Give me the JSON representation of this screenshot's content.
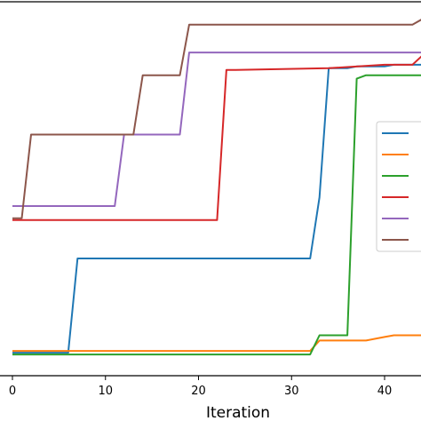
{
  "chart_data": {
    "type": "line",
    "xlabel": "Iteration",
    "xlim": [
      -1,
      44
    ],
    "ylim": [
      0,
      1
    ],
    "x_ticks": [
      0,
      10,
      20,
      30,
      40
    ],
    "legend_position": "center-right",
    "series": [
      {
        "color": "#1f77b4",
        "x": [
          0,
          6,
          7,
          31,
          32,
          33,
          34,
          35,
          36,
          37,
          38,
          39,
          40,
          41,
          42,
          43,
          44
        ],
        "y": [
          0.015,
          0.015,
          0.285,
          0.285,
          0.285,
          0.46,
          0.83,
          0.83,
          0.83,
          0.835,
          0.835,
          0.835,
          0.835,
          0.84,
          0.84,
          0.84,
          0.84
        ]
      },
      {
        "color": "#ff7f0e",
        "x": [
          0,
          31,
          32,
          33,
          38,
          39,
          40,
          41,
          42,
          44
        ],
        "y": [
          0.02,
          0.02,
          0.02,
          0.05,
          0.05,
          0.055,
          0.06,
          0.065,
          0.065,
          0.065
        ]
      },
      {
        "color": "#2ca02c",
        "x": [
          0,
          31,
          32,
          33,
          36,
          37,
          38,
          44
        ],
        "y": [
          0.01,
          0.01,
          0.01,
          0.065,
          0.065,
          0.8,
          0.81,
          0.81
        ]
      },
      {
        "color": "#d62728",
        "x": [
          0,
          22,
          23,
          24,
          34,
          40,
          41,
          42,
          43,
          44
        ],
        "y": [
          0.395,
          0.395,
          0.825,
          0.825,
          0.83,
          0.84,
          0.84,
          0.84,
          0.84,
          0.865
        ]
      },
      {
        "color": "#9467bd",
        "x": [
          0,
          11,
          12,
          13,
          18,
          19,
          43,
          44
        ],
        "y": [
          0.435,
          0.435,
          0.64,
          0.64,
          0.64,
          0.875,
          0.875,
          0.875
        ]
      },
      {
        "color": "#8c564b",
        "x": [
          0,
          1,
          2,
          13,
          14,
          18,
          19,
          20,
          25,
          40,
          41,
          42,
          43,
          44
        ],
        "y": [
          0.4,
          0.4,
          0.64,
          0.64,
          0.81,
          0.81,
          0.955,
          0.955,
          0.955,
          0.955,
          0.955,
          0.955,
          0.955,
          0.97
        ]
      }
    ]
  }
}
